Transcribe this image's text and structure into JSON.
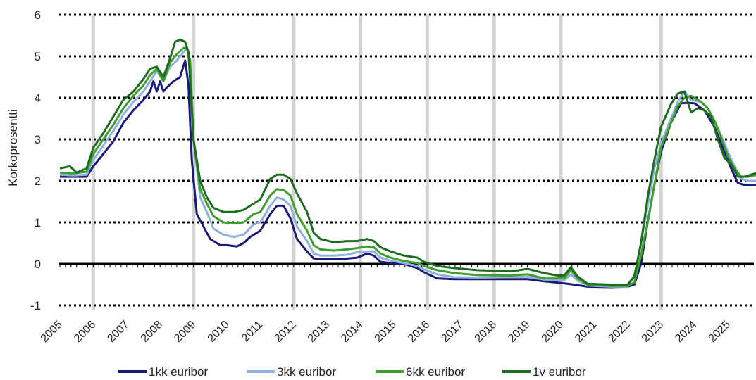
{
  "chart_data": {
    "type": "line",
    "ylabel": "Korkoprosentti",
    "xlabel": "",
    "ylim": [
      -1,
      6
    ],
    "yticks": [
      "-1",
      "0",
      "1",
      "2",
      "3",
      "4",
      "5",
      "6"
    ],
    "xlim": [
      2005.0,
      2025.9
    ],
    "xticks": [
      "2005",
      "2006",
      "2007",
      "2008",
      "2009",
      "2010",
      "2011",
      "2012",
      "2013",
      "2014",
      "2015",
      "2016",
      "2017",
      "2018",
      "2019",
      "2020",
      "2021",
      "2022",
      "2023",
      "2024",
      "2025"
    ],
    "grid": "horizontal dotted",
    "legend_position": "bottom",
    "series": [
      {
        "name": "1kk euribor",
        "color": "#1a1a7a",
        "points": [
          [
            2005.0,
            2.1
          ],
          [
            2005.4,
            2.1
          ],
          [
            2005.8,
            2.1
          ],
          [
            2006.0,
            2.35
          ],
          [
            2006.3,
            2.65
          ],
          [
            2006.6,
            2.95
          ],
          [
            2006.9,
            3.4
          ],
          [
            2007.2,
            3.7
          ],
          [
            2007.5,
            3.95
          ],
          [
            2007.7,
            4.15
          ],
          [
            2007.8,
            4.4
          ],
          [
            2007.9,
            4.15
          ],
          [
            2008.0,
            4.4
          ],
          [
            2008.1,
            4.15
          ],
          [
            2008.2,
            4.25
          ],
          [
            2008.4,
            4.4
          ],
          [
            2008.6,
            4.5
          ],
          [
            2008.75,
            4.9
          ],
          [
            2008.85,
            4.3
          ],
          [
            2008.95,
            2.5
          ],
          [
            2009.1,
            1.2
          ],
          [
            2009.3,
            0.9
          ],
          [
            2009.5,
            0.6
          ],
          [
            2009.8,
            0.45
          ],
          [
            2010.0,
            0.45
          ],
          [
            2010.3,
            0.42
          ],
          [
            2010.5,
            0.5
          ],
          [
            2010.7,
            0.65
          ],
          [
            2011.0,
            0.8
          ],
          [
            2011.3,
            1.2
          ],
          [
            2011.5,
            1.4
          ],
          [
            2011.7,
            1.4
          ],
          [
            2011.9,
            1.1
          ],
          [
            2012.1,
            0.6
          ],
          [
            2012.4,
            0.3
          ],
          [
            2012.6,
            0.13
          ],
          [
            2012.8,
            0.12
          ],
          [
            2013.0,
            0.12
          ],
          [
            2013.5,
            0.12
          ],
          [
            2013.9,
            0.15
          ],
          [
            2014.2,
            0.25
          ],
          [
            2014.4,
            0.2
          ],
          [
            2014.6,
            0.05
          ],
          [
            2014.9,
            0.02
          ],
          [
            2015.3,
            0.0
          ],
          [
            2015.7,
            -0.1
          ],
          [
            2015.9,
            -0.2
          ],
          [
            2016.3,
            -0.35
          ],
          [
            2016.8,
            -0.37
          ],
          [
            2017.5,
            -0.37
          ],
          [
            2018.5,
            -0.37
          ],
          [
            2019.0,
            -0.37
          ],
          [
            2019.5,
            -0.42
          ],
          [
            2019.9,
            -0.45
          ],
          [
            2020.2,
            -0.48
          ],
          [
            2020.4,
            -0.5
          ],
          [
            2020.8,
            -0.55
          ],
          [
            2021.5,
            -0.56
          ],
          [
            2022.0,
            -0.55
          ],
          [
            2022.2,
            -0.5
          ],
          [
            2022.4,
            0.0
          ],
          [
            2022.6,
            1.0
          ],
          [
            2022.8,
            1.9
          ],
          [
            2023.0,
            2.7
          ],
          [
            2023.3,
            3.4
          ],
          [
            2023.6,
            3.87
          ],
          [
            2023.8,
            3.88
          ],
          [
            2024.0,
            3.87
          ],
          [
            2024.3,
            3.7
          ],
          [
            2024.6,
            3.3
          ],
          [
            2024.8,
            2.9
          ],
          [
            2025.1,
            2.3
          ],
          [
            2025.3,
            1.95
          ],
          [
            2025.5,
            1.9
          ],
          [
            2025.9,
            1.9
          ]
        ]
      },
      {
        "name": "3kk euribor",
        "color": "#8fb0e0",
        "points": [
          [
            2005.0,
            2.15
          ],
          [
            2005.4,
            2.13
          ],
          [
            2005.8,
            2.15
          ],
          [
            2006.0,
            2.5
          ],
          [
            2006.3,
            2.85
          ],
          [
            2006.6,
            3.2
          ],
          [
            2006.9,
            3.6
          ],
          [
            2007.2,
            3.9
          ],
          [
            2007.5,
            4.15
          ],
          [
            2007.7,
            4.4
          ],
          [
            2007.9,
            4.65
          ],
          [
            2008.1,
            4.4
          ],
          [
            2008.3,
            4.75
          ],
          [
            2008.5,
            4.9
          ],
          [
            2008.7,
            5.1
          ],
          [
            2008.8,
            5.2
          ],
          [
            2008.9,
            4.8
          ],
          [
            2009.0,
            3.0
          ],
          [
            2009.2,
            1.6
          ],
          [
            2009.4,
            1.25
          ],
          [
            2009.6,
            0.85
          ],
          [
            2009.9,
            0.7
          ],
          [
            2010.2,
            0.65
          ],
          [
            2010.5,
            0.7
          ],
          [
            2010.8,
            0.95
          ],
          [
            2011.0,
            1.0
          ],
          [
            2011.3,
            1.4
          ],
          [
            2011.5,
            1.6
          ],
          [
            2011.7,
            1.55
          ],
          [
            2011.9,
            1.4
          ],
          [
            2012.1,
            0.9
          ],
          [
            2012.4,
            0.55
          ],
          [
            2012.6,
            0.25
          ],
          [
            2012.8,
            0.2
          ],
          [
            2013.2,
            0.2
          ],
          [
            2013.6,
            0.22
          ],
          [
            2013.9,
            0.28
          ],
          [
            2014.2,
            0.3
          ],
          [
            2014.4,
            0.3
          ],
          [
            2014.6,
            0.15
          ],
          [
            2014.9,
            0.08
          ],
          [
            2015.3,
            0.02
          ],
          [
            2015.7,
            -0.05
          ],
          [
            2015.9,
            -0.13
          ],
          [
            2016.3,
            -0.25
          ],
          [
            2016.8,
            -0.32
          ],
          [
            2017.5,
            -0.33
          ],
          [
            2018.5,
            -0.32
          ],
          [
            2019.0,
            -0.31
          ],
          [
            2019.5,
            -0.38
          ],
          [
            2019.9,
            -0.4
          ],
          [
            2020.1,
            -0.4
          ],
          [
            2020.3,
            -0.25
          ],
          [
            2020.5,
            -0.4
          ],
          [
            2020.8,
            -0.52
          ],
          [
            2021.5,
            -0.55
          ],
          [
            2022.0,
            -0.55
          ],
          [
            2022.2,
            -0.3
          ],
          [
            2022.4,
            0.5
          ],
          [
            2022.6,
            1.4
          ],
          [
            2022.8,
            2.3
          ],
          [
            2023.0,
            2.9
          ],
          [
            2023.3,
            3.5
          ],
          [
            2023.5,
            3.9
          ],
          [
            2023.7,
            4.15
          ],
          [
            2023.9,
            3.95
          ],
          [
            2024.2,
            3.9
          ],
          [
            2024.4,
            3.75
          ],
          [
            2024.6,
            3.45
          ],
          [
            2024.8,
            3.1
          ],
          [
            2025.0,
            2.7
          ],
          [
            2025.2,
            2.35
          ],
          [
            2025.4,
            2.05
          ],
          [
            2025.6,
            2.0
          ],
          [
            2025.9,
            2.0
          ]
        ]
      },
      {
        "name": "6kk euribor",
        "color": "#3ca02a",
        "points": [
          [
            2005.0,
            2.2
          ],
          [
            2005.4,
            2.18
          ],
          [
            2005.8,
            2.22
          ],
          [
            2006.0,
            2.65
          ],
          [
            2006.3,
            3.0
          ],
          [
            2006.6,
            3.35
          ],
          [
            2006.9,
            3.75
          ],
          [
            2007.2,
            4.05
          ],
          [
            2007.5,
            4.3
          ],
          [
            2007.7,
            4.55
          ],
          [
            2007.9,
            4.7
          ],
          [
            2008.1,
            4.4
          ],
          [
            2008.3,
            4.85
          ],
          [
            2008.5,
            5.05
          ],
          [
            2008.7,
            5.2
          ],
          [
            2008.8,
            5.2
          ],
          [
            2008.9,
            4.9
          ],
          [
            2009.0,
            3.0
          ],
          [
            2009.2,
            1.8
          ],
          [
            2009.4,
            1.45
          ],
          [
            2009.6,
            1.15
          ],
          [
            2009.9,
            1.0
          ],
          [
            2010.2,
            0.97
          ],
          [
            2010.5,
            1.0
          ],
          [
            2010.8,
            1.2
          ],
          [
            2011.0,
            1.25
          ],
          [
            2011.3,
            1.65
          ],
          [
            2011.5,
            1.8
          ],
          [
            2011.7,
            1.78
          ],
          [
            2011.9,
            1.65
          ],
          [
            2012.1,
            1.2
          ],
          [
            2012.4,
            0.8
          ],
          [
            2012.6,
            0.45
          ],
          [
            2012.8,
            0.35
          ],
          [
            2013.2,
            0.32
          ],
          [
            2013.6,
            0.35
          ],
          [
            2013.9,
            0.38
          ],
          [
            2014.2,
            0.42
          ],
          [
            2014.4,
            0.4
          ],
          [
            2014.6,
            0.25
          ],
          [
            2014.9,
            0.15
          ],
          [
            2015.3,
            0.07
          ],
          [
            2015.7,
            0.02
          ],
          [
            2015.9,
            -0.05
          ],
          [
            2016.3,
            -0.15
          ],
          [
            2016.8,
            -0.22
          ],
          [
            2017.5,
            -0.27
          ],
          [
            2018.5,
            -0.28
          ],
          [
            2019.0,
            -0.25
          ],
          [
            2019.5,
            -0.35
          ],
          [
            2019.9,
            -0.35
          ],
          [
            2020.1,
            -0.35
          ],
          [
            2020.3,
            -0.15
          ],
          [
            2020.5,
            -0.35
          ],
          [
            2020.8,
            -0.5
          ],
          [
            2021.5,
            -0.53
          ],
          [
            2022.0,
            -0.53
          ],
          [
            2022.2,
            -0.45
          ],
          [
            2022.4,
            0.2
          ],
          [
            2022.6,
            1.0
          ],
          [
            2022.8,
            1.9
          ],
          [
            2023.0,
            2.8
          ],
          [
            2023.3,
            3.4
          ],
          [
            2023.5,
            3.8
          ],
          [
            2023.7,
            4.0
          ],
          [
            2023.9,
            4.05
          ],
          [
            2024.2,
            3.9
          ],
          [
            2024.4,
            3.75
          ],
          [
            2024.6,
            3.45
          ],
          [
            2024.8,
            3.05
          ],
          [
            2025.0,
            2.6
          ],
          [
            2025.2,
            2.3
          ],
          [
            2025.4,
            2.1
          ],
          [
            2025.6,
            2.1
          ],
          [
            2025.9,
            2.15
          ]
        ]
      },
      {
        "name": "1v euribor",
        "color": "#1e6b22",
        "points": [
          [
            2005.0,
            2.3
          ],
          [
            2005.3,
            2.35
          ],
          [
            2005.5,
            2.2
          ],
          [
            2005.8,
            2.3
          ],
          [
            2006.0,
            2.8
          ],
          [
            2006.3,
            3.15
          ],
          [
            2006.6,
            3.55
          ],
          [
            2006.9,
            3.95
          ],
          [
            2007.2,
            4.15
          ],
          [
            2007.5,
            4.45
          ],
          [
            2007.7,
            4.7
          ],
          [
            2007.9,
            4.75
          ],
          [
            2008.1,
            4.5
          ],
          [
            2008.3,
            4.95
          ],
          [
            2008.45,
            5.35
          ],
          [
            2008.6,
            5.4
          ],
          [
            2008.75,
            5.35
          ],
          [
            2008.85,
            5.1
          ],
          [
            2009.0,
            3.0
          ],
          [
            2009.2,
            2.0
          ],
          [
            2009.4,
            1.6
          ],
          [
            2009.6,
            1.35
          ],
          [
            2009.9,
            1.25
          ],
          [
            2010.2,
            1.25
          ],
          [
            2010.5,
            1.3
          ],
          [
            2010.8,
            1.45
          ],
          [
            2011.0,
            1.55
          ],
          [
            2011.3,
            2.05
          ],
          [
            2011.5,
            2.15
          ],
          [
            2011.7,
            2.15
          ],
          [
            2011.9,
            2.05
          ],
          [
            2012.1,
            1.7
          ],
          [
            2012.4,
            1.25
          ],
          [
            2012.6,
            0.75
          ],
          [
            2012.8,
            0.6
          ],
          [
            2013.2,
            0.52
          ],
          [
            2013.6,
            0.55
          ],
          [
            2013.9,
            0.55
          ],
          [
            2014.2,
            0.6
          ],
          [
            2014.4,
            0.55
          ],
          [
            2014.6,
            0.4
          ],
          [
            2014.9,
            0.3
          ],
          [
            2015.3,
            0.2
          ],
          [
            2015.7,
            0.15
          ],
          [
            2015.9,
            0.05
          ],
          [
            2016.3,
            -0.05
          ],
          [
            2016.8,
            -0.1
          ],
          [
            2017.5,
            -0.15
          ],
          [
            2018.5,
            -0.18
          ],
          [
            2019.0,
            -0.12
          ],
          [
            2019.5,
            -0.22
          ],
          [
            2019.9,
            -0.28
          ],
          [
            2020.1,
            -0.28
          ],
          [
            2020.3,
            -0.08
          ],
          [
            2020.5,
            -0.3
          ],
          [
            2020.8,
            -0.48
          ],
          [
            2021.5,
            -0.5
          ],
          [
            2022.0,
            -0.5
          ],
          [
            2022.2,
            -0.3
          ],
          [
            2022.4,
            0.5
          ],
          [
            2022.6,
            1.6
          ],
          [
            2022.8,
            2.5
          ],
          [
            2023.0,
            3.3
          ],
          [
            2023.3,
            3.85
          ],
          [
            2023.5,
            4.1
          ],
          [
            2023.7,
            4.15
          ],
          [
            2023.9,
            3.65
          ],
          [
            2024.1,
            3.75
          ],
          [
            2024.3,
            3.7
          ],
          [
            2024.5,
            3.55
          ],
          [
            2024.7,
            3.0
          ],
          [
            2024.9,
            2.55
          ],
          [
            2025.1,
            2.4
          ],
          [
            2025.3,
            2.1
          ],
          [
            2025.5,
            2.1
          ],
          [
            2025.7,
            2.15
          ],
          [
            2025.9,
            2.2
          ]
        ]
      }
    ]
  }
}
